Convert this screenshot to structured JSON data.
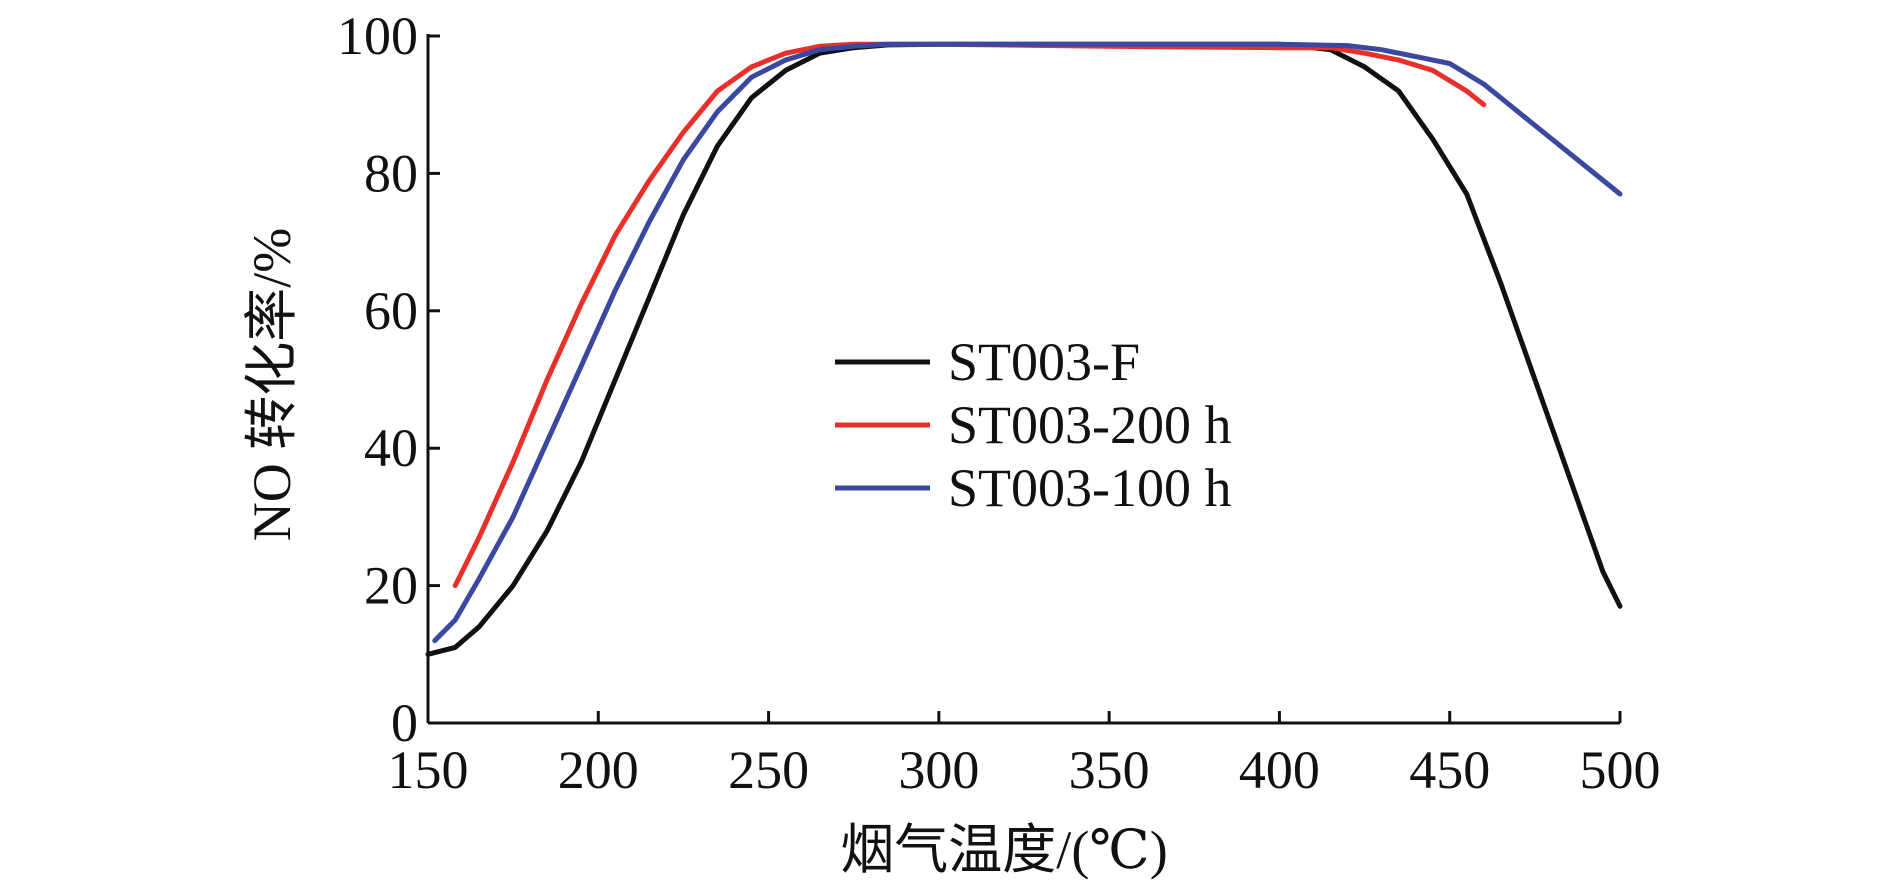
{
  "chart_data": {
    "type": "line",
    "xlabel": "烟气温度/(℃)",
    "ylabel": "NO 转化率/%",
    "xlim": [
      150,
      500
    ],
    "ylim": [
      0,
      100
    ],
    "xticks": [
      150,
      200,
      250,
      300,
      350,
      400,
      450,
      500
    ],
    "yticks": [
      0,
      20,
      40,
      60,
      80,
      100
    ],
    "grid": false,
    "legend_position": "center",
    "series": [
      {
        "name": "ST003-F",
        "color": "#111111",
        "x": [
          150,
          158,
          165,
          175,
          185,
          195,
          205,
          215,
          225,
          235,
          245,
          255,
          265,
          275,
          285,
          300,
          350,
          400,
          415,
          425,
          435,
          445,
          455,
          465,
          475,
          485,
          490,
          495,
          500
        ],
        "y": [
          10,
          11,
          14,
          20,
          28,
          38,
          50,
          62,
          74,
          84,
          91,
          95,
          97.5,
          98.3,
          98.7,
          98.8,
          98.8,
          98.8,
          98,
          95.5,
          92,
          85,
          77,
          64,
          50,
          36,
          29,
          22,
          17
        ]
      },
      {
        "name": "ST003-200 h",
        "color": "#e8302a",
        "x": [
          158,
          165,
          175,
          185,
          195,
          205,
          215,
          225,
          235,
          245,
          255,
          265,
          275,
          285,
          300,
          350,
          400,
          415,
          425,
          435,
          445,
          455,
          460
        ],
        "y": [
          20,
          27,
          38,
          50,
          61,
          71,
          79,
          86,
          92,
          95.5,
          97.5,
          98.5,
          98.8,
          98.8,
          98.8,
          98.5,
          98.3,
          98.3,
          97.5,
          96.5,
          95,
          92,
          90
        ]
      },
      {
        "name": "ST003-100 h",
        "color": "#3a48a0",
        "x": [
          152,
          158,
          165,
          175,
          185,
          195,
          205,
          215,
          225,
          235,
          245,
          255,
          265,
          275,
          285,
          300,
          350,
          400,
          420,
          430,
          440,
          450,
          460,
          470,
          480,
          490,
          500
        ],
        "y": [
          12,
          15,
          21,
          30,
          41,
          52,
          63,
          73,
          82,
          89,
          94,
          96.5,
          98,
          98.5,
          98.8,
          98.8,
          98.8,
          98.8,
          98.6,
          98,
          97,
          96,
          93,
          89,
          85,
          81,
          77
        ]
      }
    ]
  }
}
